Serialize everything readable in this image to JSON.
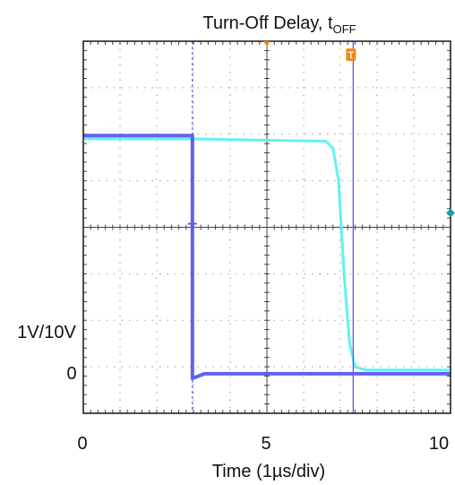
{
  "chart_data": {
    "type": "line",
    "title": "Turn-Off Delay, t",
    "title_subscript": "OFF",
    "xlabel": "Time (1µs/div)",
    "x_ticks": [
      "0",
      "5",
      "10"
    ],
    "xlim": [
      0,
      10
    ],
    "y_left_labels": [
      "1V/10V",
      "0"
    ],
    "ylim_divisions": [
      0,
      8
    ],
    "grid": true,
    "series": [
      {
        "color": "#5cf0f0",
        "points": [
          [
            0,
            5.9
          ],
          [
            3.0,
            5.9
          ],
          [
            6.6,
            5.85
          ],
          [
            6.8,
            5.7
          ],
          [
            6.95,
            5.0
          ],
          [
            7.1,
            3.0
          ],
          [
            7.25,
            1.5
          ],
          [
            7.4,
            1.0
          ],
          [
            7.7,
            0.93
          ],
          [
            10,
            0.93
          ]
        ]
      },
      {
        "color": "#5a5af0",
        "points": [
          [
            0,
            5.97
          ],
          [
            2.97,
            5.97
          ],
          [
            2.97,
            0.75
          ],
          [
            3.3,
            0.85
          ],
          [
            10,
            0.85
          ]
        ]
      }
    ],
    "markers": {
      "trigger_cursor_x": 2.97,
      "cursor_x": 7.35,
      "trigger_marker_label": "T",
      "cursor_color": "#5a5af0",
      "trigger_marker_color": "#f08a1a",
      "teal_marker_color": "#1aa3a3"
    }
  }
}
